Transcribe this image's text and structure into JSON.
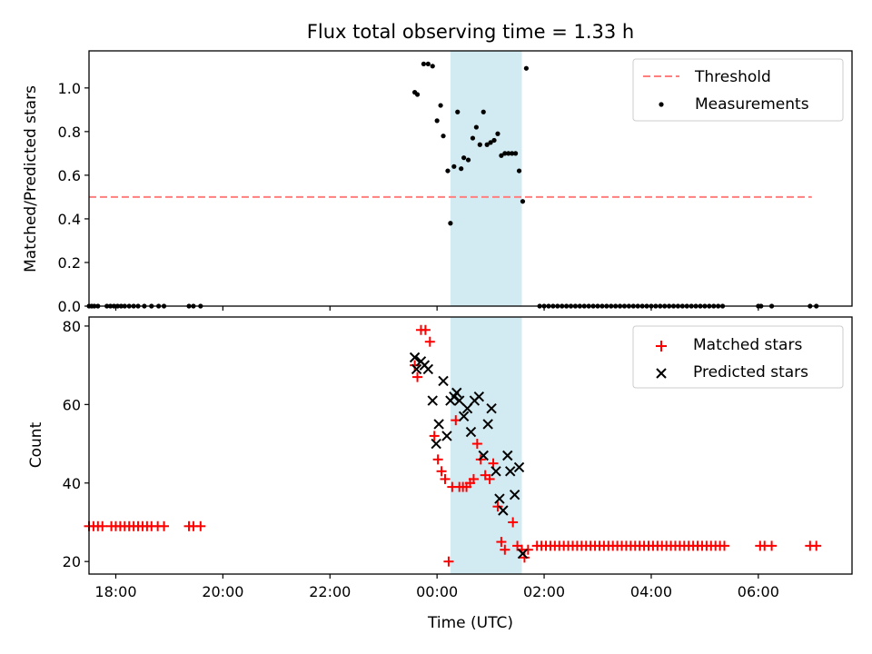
{
  "title": "Flux total observing time = 1.33 h",
  "colors": {
    "threshold": "#ff7f7f",
    "measurement": "#000000",
    "matched": "#ff0000",
    "predicted": "#000000",
    "observing_span": "#add8e6"
  },
  "chart_data": [
    {
      "type": "scatter",
      "panel": "top",
      "xlabel": "",
      "ylabel": "Matched/Predicted stars",
      "ylim": [
        0,
        1.17
      ],
      "xlim": [
        "17:30",
        "07:45"
      ],
      "yticks": [
        0.0,
        0.2,
        0.4,
        0.6,
        0.8,
        1.0
      ],
      "ytick_labels": [
        "0.0",
        "0.2",
        "0.4",
        "0.6",
        "0.8",
        "1.0"
      ],
      "observing_span": [
        "00:15",
        "01:35"
      ],
      "legend": {
        "position": "top-right",
        "entries": [
          "Threshold",
          "Measurements"
        ]
      },
      "threshold": {
        "name": "Threshold",
        "value": 0.5,
        "x": [
          "17:30",
          "07:00"
        ]
      },
      "series": [
        {
          "name": "Measurements",
          "points": [
            [
              "17:30",
              0
            ],
            [
              "17:33",
              0
            ],
            [
              "17:36",
              0
            ],
            [
              "17:40",
              0
            ],
            [
              "17:50",
              0
            ],
            [
              "17:54",
              0
            ],
            [
              "17:58",
              0
            ],
            [
              "18:02",
              0
            ],
            [
              "18:06",
              0
            ],
            [
              "18:10",
              0
            ],
            [
              "18:15",
              0
            ],
            [
              "18:20",
              0
            ],
            [
              "18:25",
              0
            ],
            [
              "18:32",
              0
            ],
            [
              "18:40",
              0
            ],
            [
              "18:48",
              0
            ],
            [
              "18:54",
              0
            ],
            [
              "19:22",
              0
            ],
            [
              "19:27",
              0
            ],
            [
              "19:35",
              0
            ],
            [
              "23:35",
              0.98
            ],
            [
              "23:38",
              0.97
            ],
            [
              "23:45",
              1.11
            ],
            [
              "23:50",
              1.11
            ],
            [
              "23:55",
              1.1
            ],
            [
              "00:00",
              0.85
            ],
            [
              "00:04",
              0.92
            ],
            [
              "00:07",
              0.78
            ],
            [
              "00:12",
              0.62
            ],
            [
              "00:15",
              0.38
            ],
            [
              "00:19",
              0.64
            ],
            [
              "00:23",
              0.89
            ],
            [
              "00:27",
              0.63
            ],
            [
              "00:30",
              0.68
            ],
            [
              "00:35",
              0.67
            ],
            [
              "00:40",
              0.77
            ],
            [
              "00:44",
              0.82
            ],
            [
              "00:48",
              0.74
            ],
            [
              "00:52",
              0.89
            ],
            [
              "00:56",
              0.74
            ],
            [
              "01:00",
              0.75
            ],
            [
              "01:04",
              0.76
            ],
            [
              "01:08",
              0.79
            ],
            [
              "01:12",
              0.69
            ],
            [
              "01:16",
              0.7
            ],
            [
              "01:20",
              0.7
            ],
            [
              "01:24",
              0.7
            ],
            [
              "01:28",
              0.7
            ],
            [
              "01:32",
              0.62
            ],
            [
              "01:36",
              0.48
            ],
            [
              "01:40",
              1.09
            ],
            [
              "01:55",
              0
            ],
            [
              "02:00",
              0
            ],
            [
              "02:05",
              0
            ],
            [
              "02:10",
              0
            ],
            [
              "02:15",
              0
            ],
            [
              "02:20",
              0
            ],
            [
              "02:25",
              0
            ],
            [
              "02:30",
              0
            ],
            [
              "02:35",
              0
            ],
            [
              "02:40",
              0
            ],
            [
              "02:45",
              0
            ],
            [
              "02:50",
              0
            ],
            [
              "02:55",
              0
            ],
            [
              "03:00",
              0
            ],
            [
              "03:05",
              0
            ],
            [
              "03:10",
              0
            ],
            [
              "03:15",
              0
            ],
            [
              "03:20",
              0
            ],
            [
              "03:25",
              0
            ],
            [
              "03:30",
              0
            ],
            [
              "03:35",
              0
            ],
            [
              "03:40",
              0
            ],
            [
              "03:45",
              0
            ],
            [
              "03:50",
              0
            ],
            [
              "03:55",
              0
            ],
            [
              "04:00",
              0
            ],
            [
              "04:05",
              0
            ],
            [
              "04:10",
              0
            ],
            [
              "04:15",
              0
            ],
            [
              "04:20",
              0
            ],
            [
              "04:25",
              0
            ],
            [
              "04:30",
              0
            ],
            [
              "04:35",
              0
            ],
            [
              "04:40",
              0
            ],
            [
              "04:45",
              0
            ],
            [
              "04:50",
              0
            ],
            [
              "04:55",
              0
            ],
            [
              "05:00",
              0
            ],
            [
              "05:05",
              0
            ],
            [
              "05:10",
              0
            ],
            [
              "05:15",
              0
            ],
            [
              "05:20",
              0
            ],
            [
              "06:00",
              0
            ],
            [
              "06:03",
              0
            ],
            [
              "06:15",
              0
            ],
            [
              "06:58",
              0
            ],
            [
              "07:05",
              0
            ]
          ]
        }
      ]
    },
    {
      "type": "scatter",
      "panel": "bottom",
      "xlabel": "Time (UTC)",
      "ylabel": "Count",
      "ylim": [
        16.8,
        82.3
      ],
      "xlim": [
        "17:30",
        "07:45"
      ],
      "yticks": [
        20,
        40,
        60,
        80
      ],
      "ytick_labels": [
        "20",
        "40",
        "60",
        "80"
      ],
      "xticks": [
        "18:00",
        "20:00",
        "22:00",
        "00:00",
        "02:00",
        "04:00",
        "06:00"
      ],
      "xtick_labels": [
        "18:00",
        "20:00",
        "22:00",
        "00:00",
        "02:00",
        "04:00",
        "06:00"
      ],
      "observing_span": [
        "00:15",
        "01:35"
      ],
      "legend": {
        "position": "top-right",
        "entries": [
          "Matched stars",
          "Predicted stars"
        ]
      },
      "series": [
        {
          "name": "Matched stars",
          "marker": "plus",
          "points": [
            [
              "17:30",
              29
            ],
            [
              "17:35",
              29
            ],
            [
              "17:40",
              29
            ],
            [
              "17:45",
              29
            ],
            [
              "17:55",
              29
            ],
            [
              "18:00",
              29
            ],
            [
              "18:05",
              29
            ],
            [
              "18:10",
              29
            ],
            [
              "18:15",
              29
            ],
            [
              "18:20",
              29
            ],
            [
              "18:25",
              29
            ],
            [
              "18:30",
              29
            ],
            [
              "18:35",
              29
            ],
            [
              "18:40",
              29
            ],
            [
              "18:47",
              29
            ],
            [
              "18:54",
              29
            ],
            [
              "19:22",
              29
            ],
            [
              "19:27",
              29
            ],
            [
              "19:35",
              29
            ],
            [
              "23:35",
              70
            ],
            [
              "23:38",
              67
            ],
            [
              "23:42",
              79
            ],
            [
              "23:47",
              79
            ],
            [
              "23:52",
              76
            ],
            [
              "23:57",
              52
            ],
            [
              "00:01",
              46
            ],
            [
              "00:05",
              43
            ],
            [
              "00:09",
              41
            ],
            [
              "00:13",
              20
            ],
            [
              "00:17",
              39
            ],
            [
              "00:21",
              56
            ],
            [
              "00:25",
              39
            ],
            [
              "00:29",
              39
            ],
            [
              "00:33",
              39
            ],
            [
              "00:37",
              40
            ],
            [
              "00:41",
              41
            ],
            [
              "00:45",
              50
            ],
            [
              "00:49",
              46
            ],
            [
              "00:54",
              42
            ],
            [
              "00:59",
              41
            ],
            [
              "01:03",
              45
            ],
            [
              "01:08",
              34
            ],
            [
              "01:12",
              25
            ],
            [
              "01:16",
              23
            ],
            [
              "01:25",
              30
            ],
            [
              "01:30",
              24
            ],
            [
              "01:35",
              23
            ],
            [
              "01:38",
              21
            ],
            [
              "01:42",
              23
            ],
            [
              "01:52",
              24
            ],
            [
              "01:57",
              24
            ],
            [
              "02:02",
              24
            ],
            [
              "02:07",
              24
            ],
            [
              "02:12",
              24
            ],
            [
              "02:17",
              24
            ],
            [
              "02:22",
              24
            ],
            [
              "02:27",
              24
            ],
            [
              "02:32",
              24
            ],
            [
              "02:37",
              24
            ],
            [
              "02:42",
              24
            ],
            [
              "02:47",
              24
            ],
            [
              "02:52",
              24
            ],
            [
              "02:57",
              24
            ],
            [
              "03:02",
              24
            ],
            [
              "03:07",
              24
            ],
            [
              "03:12",
              24
            ],
            [
              "03:17",
              24
            ],
            [
              "03:22",
              24
            ],
            [
              "03:27",
              24
            ],
            [
              "03:32",
              24
            ],
            [
              "03:37",
              24
            ],
            [
              "03:42",
              24
            ],
            [
              "03:47",
              24
            ],
            [
              "03:52",
              24
            ],
            [
              "03:57",
              24
            ],
            [
              "04:02",
              24
            ],
            [
              "04:07",
              24
            ],
            [
              "04:12",
              24
            ],
            [
              "04:17",
              24
            ],
            [
              "04:22",
              24
            ],
            [
              "04:27",
              24
            ],
            [
              "04:32",
              24
            ],
            [
              "04:37",
              24
            ],
            [
              "04:42",
              24
            ],
            [
              "04:47",
              24
            ],
            [
              "04:52",
              24
            ],
            [
              "04:57",
              24
            ],
            [
              "05:02",
              24
            ],
            [
              "05:07",
              24
            ],
            [
              "05:12",
              24
            ],
            [
              "05:17",
              24
            ],
            [
              "05:22",
              24
            ],
            [
              "06:02",
              24
            ],
            [
              "06:07",
              24
            ],
            [
              "06:15",
              24
            ],
            [
              "06:58",
              24
            ],
            [
              "07:05",
              24
            ]
          ]
        },
        {
          "name": "Predicted stars",
          "marker": "x",
          "points": [
            [
              "23:35",
              72
            ],
            [
              "23:37",
              69
            ],
            [
              "23:42",
              71
            ],
            [
              "23:46",
              70
            ],
            [
              "23:50",
              69
            ],
            [
              "23:55",
              61
            ],
            [
              "23:59",
              50
            ],
            [
              "00:02",
              55
            ],
            [
              "00:07",
              66
            ],
            [
              "00:11",
              52
            ],
            [
              "00:15",
              61
            ],
            [
              "00:19",
              62
            ],
            [
              "00:22",
              63
            ],
            [
              "00:25",
              61
            ],
            [
              "00:30",
              57
            ],
            [
              "00:34",
              59
            ],
            [
              "00:38",
              53
            ],
            [
              "00:42",
              61
            ],
            [
              "00:47",
              62
            ],
            [
              "00:52",
              47
            ],
            [
              "00:57",
              55
            ],
            [
              "01:01",
              59
            ],
            [
              "01:06",
              43
            ],
            [
              "01:10",
              36
            ],
            [
              "01:14",
              33
            ],
            [
              "01:19",
              47
            ],
            [
              "01:22",
              43
            ],
            [
              "01:27",
              37
            ],
            [
              "01:32",
              44
            ],
            [
              "01:36",
              22
            ]
          ]
        }
      ]
    }
  ]
}
